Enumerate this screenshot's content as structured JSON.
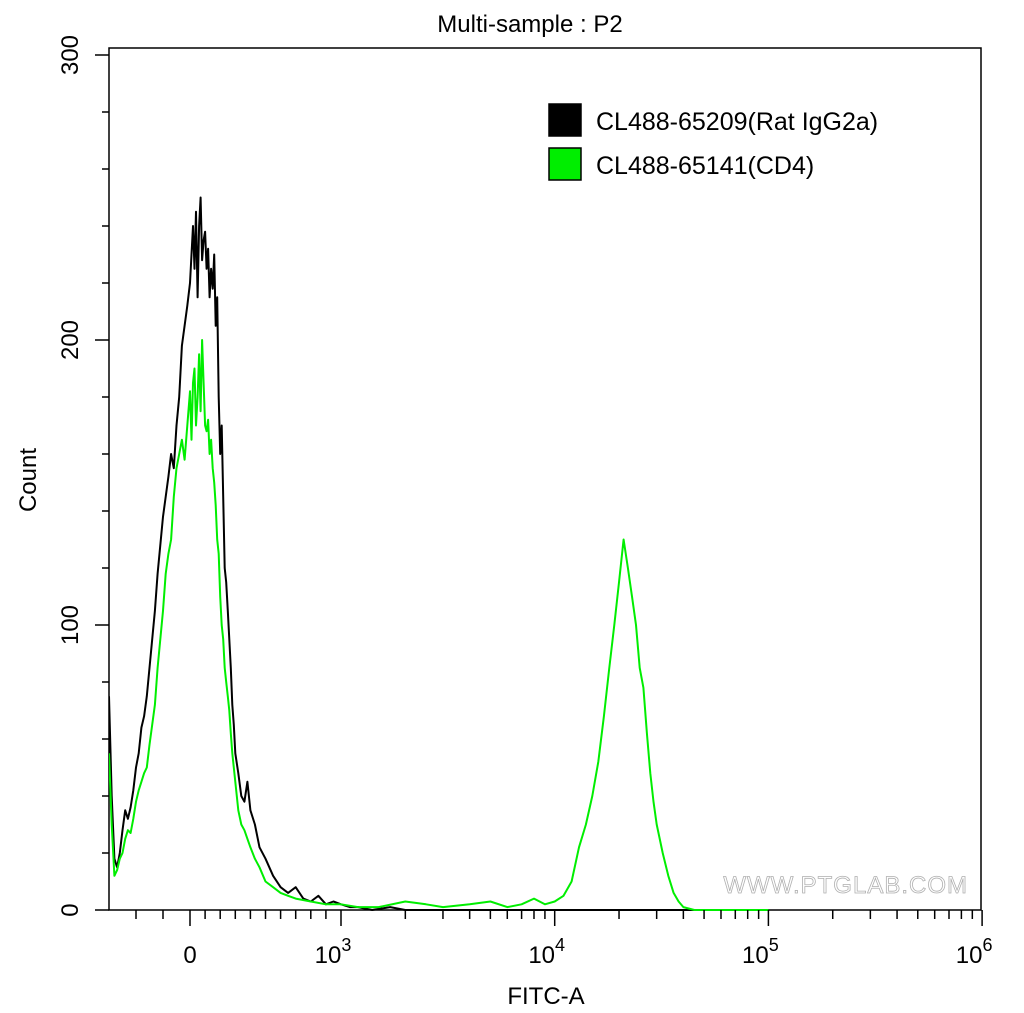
{
  "chart_data": {
    "type": "line",
    "title": "Multi-sample : P2",
    "xlabel": "FITC-A",
    "ylabel": "Count",
    "x_scale": "biexponential",
    "xlim": [
      -300,
      1000000
    ],
    "ylim": [
      0,
      300
    ],
    "y_ticks": [
      "0",
      "100",
      "200",
      "300"
    ],
    "x_ticks": [
      {
        "value": 0,
        "base": "0",
        "exp": ""
      },
      {
        "value": 1000,
        "base": "10",
        "exp": "3"
      },
      {
        "value": 10000,
        "base": "10",
        "exp": "4"
      },
      {
        "value": 100000,
        "base": "10",
        "exp": "5"
      },
      {
        "value": 1000000,
        "base": "10",
        "exp": "6"
      }
    ],
    "legend": {
      "position": "top-right"
    },
    "watermark": "WWW.PTGLAB.COM",
    "series": [
      {
        "name": "CL488-65209(Rat IgG2a)",
        "color": "#000000",
        "points": [
          [
            -300,
            75
          ],
          [
            -290,
            40
          ],
          [
            -280,
            18
          ],
          [
            -270,
            15
          ],
          [
            -260,
            20
          ],
          [
            -250,
            28
          ],
          [
            -240,
            35
          ],
          [
            -230,
            32
          ],
          [
            -220,
            36
          ],
          [
            -210,
            42
          ],
          [
            -200,
            50
          ],
          [
            -190,
            55
          ],
          [
            -180,
            64
          ],
          [
            -170,
            68
          ],
          [
            -160,
            75
          ],
          [
            -150,
            85
          ],
          [
            -140,
            95
          ],
          [
            -130,
            105
          ],
          [
            -120,
            118
          ],
          [
            -110,
            128
          ],
          [
            -100,
            138
          ],
          [
            -90,
            145
          ],
          [
            -80,
            152
          ],
          [
            -70,
            160
          ],
          [
            -60,
            155
          ],
          [
            -50,
            170
          ],
          [
            -40,
            180
          ],
          [
            -30,
            198
          ],
          [
            -20,
            205
          ],
          [
            -10,
            212
          ],
          [
            0,
            220
          ],
          [
            10,
            230
          ],
          [
            20,
            240
          ],
          [
            30,
            225
          ],
          [
            40,
            245
          ],
          [
            50,
            215
          ],
          [
            60,
            240
          ],
          [
            70,
            250
          ],
          [
            80,
            228
          ],
          [
            90,
            235
          ],
          [
            100,
            238
          ],
          [
            110,
            225
          ],
          [
            120,
            232
          ],
          [
            130,
            215
          ],
          [
            140,
            225
          ],
          [
            150,
            218
          ],
          [
            160,
            230
          ],
          [
            170,
            205
          ],
          [
            180,
            215
          ],
          [
            190,
            180
          ],
          [
            200,
            160
          ],
          [
            210,
            170
          ],
          [
            220,
            145
          ],
          [
            230,
            120
          ],
          [
            240,
            115
          ],
          [
            250,
            105
          ],
          [
            260,
            95
          ],
          [
            270,
            85
          ],
          [
            280,
            72
          ],
          [
            290,
            65
          ],
          [
            300,
            55
          ],
          [
            320,
            48
          ],
          [
            340,
            40
          ],
          [
            360,
            38
          ],
          [
            380,
            45
          ],
          [
            400,
            35
          ],
          [
            430,
            30
          ],
          [
            460,
            22
          ],
          [
            500,
            18
          ],
          [
            550,
            12
          ],
          [
            600,
            8
          ],
          [
            650,
            6
          ],
          [
            700,
            8
          ],
          [
            750,
            4
          ],
          [
            800,
            3
          ],
          [
            850,
            5
          ],
          [
            900,
            2
          ],
          [
            950,
            3
          ],
          [
            1000,
            2
          ],
          [
            1100,
            1
          ],
          [
            1200,
            1
          ],
          [
            1400,
            0
          ],
          [
            1700,
            1
          ],
          [
            2000,
            0
          ],
          [
            100000,
            0
          ]
        ]
      },
      {
        "name": "CL488-65141(CD4)",
        "color": "#00ee00",
        "points": [
          [
            -300,
            55
          ],
          [
            -290,
            30
          ],
          [
            -280,
            12
          ],
          [
            -270,
            14
          ],
          [
            -260,
            18
          ],
          [
            -250,
            20
          ],
          [
            -240,
            25
          ],
          [
            -230,
            28
          ],
          [
            -220,
            27
          ],
          [
            -210,
            32
          ],
          [
            -200,
            38
          ],
          [
            -190,
            42
          ],
          [
            -180,
            45
          ],
          [
            -170,
            48
          ],
          [
            -160,
            50
          ],
          [
            -150,
            58
          ],
          [
            -140,
            65
          ],
          [
            -130,
            72
          ],
          [
            -120,
            85
          ],
          [
            -110,
            95
          ],
          [
            -100,
            105
          ],
          [
            -90,
            118
          ],
          [
            -80,
            125
          ],
          [
            -70,
            130
          ],
          [
            -60,
            145
          ],
          [
            -50,
            155
          ],
          [
            -40,
            160
          ],
          [
            -30,
            165
          ],
          [
            -20,
            158
          ],
          [
            -10,
            170
          ],
          [
            0,
            182
          ],
          [
            10,
            165
          ],
          [
            20,
            185
          ],
          [
            30,
            190
          ],
          [
            40,
            170
          ],
          [
            50,
            180
          ],
          [
            60,
            195
          ],
          [
            70,
            175
          ],
          [
            80,
            200
          ],
          [
            90,
            185
          ],
          [
            100,
            170
          ],
          [
            110,
            168
          ],
          [
            120,
            172
          ],
          [
            130,
            160
          ],
          [
            140,
            165
          ],
          [
            150,
            155
          ],
          [
            160,
            150
          ],
          [
            170,
            142
          ],
          [
            180,
            130
          ],
          [
            190,
            125
          ],
          [
            200,
            110
          ],
          [
            210,
            100
          ],
          [
            220,
            95
          ],
          [
            230,
            85
          ],
          [
            240,
            80
          ],
          [
            250,
            75
          ],
          [
            260,
            70
          ],
          [
            270,
            62
          ],
          [
            280,
            55
          ],
          [
            290,
            50
          ],
          [
            300,
            45
          ],
          [
            320,
            35
          ],
          [
            340,
            30
          ],
          [
            360,
            28
          ],
          [
            380,
            25
          ],
          [
            400,
            22
          ],
          [
            430,
            18
          ],
          [
            460,
            15
          ],
          [
            500,
            10
          ],
          [
            550,
            8
          ],
          [
            600,
            6
          ],
          [
            650,
            5
          ],
          [
            700,
            4
          ],
          [
            800,
            3
          ],
          [
            900,
            2
          ],
          [
            1000,
            2
          ],
          [
            1200,
            1
          ],
          [
            1500,
            1
          ],
          [
            2000,
            3
          ],
          [
            2500,
            2
          ],
          [
            3000,
            1
          ],
          [
            4000,
            2
          ],
          [
            5000,
            3
          ],
          [
            6000,
            1
          ],
          [
            7000,
            2
          ],
          [
            8000,
            4
          ],
          [
            9000,
            2
          ],
          [
            10000,
            3
          ],
          [
            11000,
            5
          ],
          [
            12000,
            10
          ],
          [
            13000,
            22
          ],
          [
            14000,
            30
          ],
          [
            15000,
            40
          ],
          [
            16000,
            52
          ],
          [
            17000,
            68
          ],
          [
            18000,
            85
          ],
          [
            19000,
            100
          ],
          [
            20000,
            115
          ],
          [
            21000,
            130
          ],
          [
            22000,
            120
          ],
          [
            23000,
            110
          ],
          [
            24000,
            100
          ],
          [
            25000,
            85
          ],
          [
            26000,
            78
          ],
          [
            27000,
            62
          ],
          [
            28000,
            48
          ],
          [
            29000,
            38
          ],
          [
            30000,
            30
          ],
          [
            32000,
            20
          ],
          [
            34000,
            12
          ],
          [
            36000,
            6
          ],
          [
            38000,
            3
          ],
          [
            40000,
            1
          ],
          [
            45000,
            0
          ],
          [
            100000,
            0
          ]
        ]
      }
    ]
  }
}
